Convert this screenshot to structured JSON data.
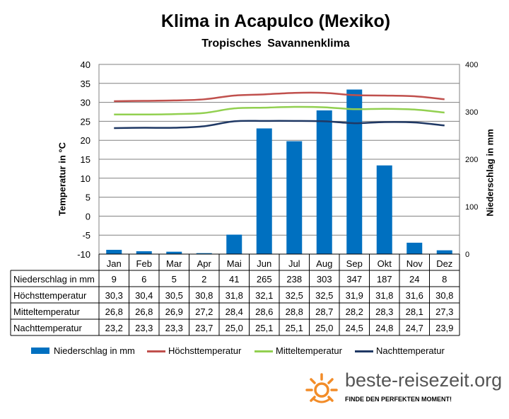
{
  "title": "Klima in Acapulco (Mexiko)",
  "subtitle": "Tropisches Savannenklima",
  "chart_data": {
    "type": "bar",
    "categories": [
      "Jan",
      "Feb",
      "Mar",
      "Apr",
      "Mai",
      "Jun",
      "Jul",
      "Aug",
      "Sep",
      "Okt",
      "Nov",
      "Dez"
    ],
    "ylabel_left": "Temperatur in °C",
    "ylabel_right": "Niederschlag in mm",
    "ylim_left": [
      -10,
      40
    ],
    "ylim_right": [
      0,
      400
    ],
    "yticks_left": [
      "40",
      "35",
      "30",
      "25",
      "20",
      "15",
      "10",
      "5",
      "0",
      "-5",
      "-10"
    ],
    "yticks_right": [
      "400",
      "300",
      "200",
      "100",
      "0"
    ],
    "series": [
      {
        "name": "Niederschlag in mm",
        "type": "bar",
        "axis": "right",
        "color": "#0070c0",
        "values": [
          9,
          6,
          5,
          2,
          41,
          265,
          238,
          303,
          347,
          187,
          24,
          8
        ]
      },
      {
        "name": "Höchsttemperatur",
        "type": "line",
        "axis": "left",
        "color": "#c0504d",
        "values": [
          30.3,
          30.4,
          30.5,
          30.8,
          31.8,
          32.1,
          32.5,
          32.5,
          31.9,
          31.8,
          31.6,
          30.8
        ]
      },
      {
        "name": "Mitteltemperatur",
        "type": "line",
        "axis": "left",
        "color": "#92d050",
        "values": [
          26.8,
          26.8,
          26.9,
          27.2,
          28.4,
          28.6,
          28.8,
          28.7,
          28.2,
          28.3,
          28.1,
          27.3
        ]
      },
      {
        "name": "Nachttemperatur",
        "type": "line",
        "axis": "left",
        "color": "#1f3864",
        "values": [
          23.2,
          23.3,
          23.3,
          23.7,
          25.0,
          25.1,
          25.1,
          25.0,
          24.5,
          24.8,
          24.7,
          23.9
        ]
      }
    ],
    "table": {
      "rows": [
        {
          "label": "Niederschlag in mm",
          "cells": [
            "9",
            "6",
            "5",
            "2",
            "41",
            "265",
            "238",
            "303",
            "347",
            "187",
            "24",
            "8"
          ]
        },
        {
          "label": "Höchsttemperatur",
          "cells": [
            "30,3",
            "30,4",
            "30,5",
            "30,8",
            "31,8",
            "32,1",
            "32,5",
            "32,5",
            "31,9",
            "31,8",
            "31,6",
            "30,8"
          ]
        },
        {
          "label": "Mitteltemperatur",
          "cells": [
            "26,8",
            "26,8",
            "26,9",
            "27,2",
            "28,4",
            "28,6",
            "28,8",
            "28,7",
            "28,2",
            "28,3",
            "28,1",
            "27,3"
          ]
        },
        {
          "label": "Nachttemperatur",
          "cells": [
            "23,2",
            "23,3",
            "23,3",
            "23,7",
            "25,0",
            "25,1",
            "25,1",
            "25,0",
            "24,5",
            "24,8",
            "24,7",
            "23,9"
          ]
        }
      ]
    },
    "grid": true,
    "legend_position": "bottom"
  },
  "logo": {
    "text": "beste-reisezeit.org",
    "tagline": "FINDE DEN PERFEKTEN MOMENT!",
    "color": "#f28c28"
  }
}
